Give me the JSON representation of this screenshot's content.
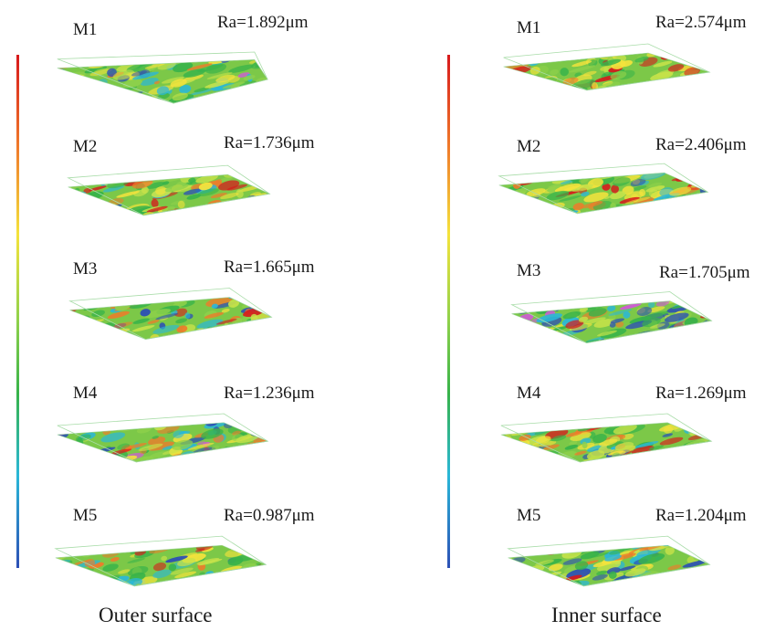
{
  "columns": [
    {
      "caption": "Outer surface",
      "panels": [
        {
          "name": "M1",
          "ra": "Ra=1.892μm"
        },
        {
          "name": "M2",
          "ra": "Ra=1.736μm"
        },
        {
          "name": "M3",
          "ra": "Ra=1.665μm"
        },
        {
          "name": "M4",
          "ra": "Ra=1.236μm"
        },
        {
          "name": "M5",
          "ra": "Ra=0.987μm"
        }
      ]
    },
    {
      "caption": "Inner surface",
      "panels": [
        {
          "name": "M1",
          "ra": "Ra=2.574μm"
        },
        {
          "name": "M2",
          "ra": "Ra=2.406μm"
        },
        {
          "name": "M3",
          "ra": "Ra=1.705μm"
        },
        {
          "name": "M4",
          "ra": "Ra=1.269μm"
        },
        {
          "name": "M5",
          "ra": "Ra=1.204μm"
        }
      ]
    }
  ],
  "colorbar": {
    "gradient": [
      "#d7191c",
      "#f07a2a",
      "#f4e33c",
      "#8ed14b",
      "#37b34a",
      "#2ab7d8",
      "#2c4fb5"
    ]
  }
}
